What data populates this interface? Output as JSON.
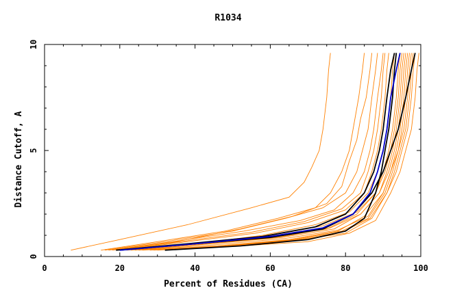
{
  "chart_data": {
    "type": "line",
    "title": "R1034",
    "xlabel": "Percent of Residues (CA)",
    "ylabel": "Distance Cutoff, A",
    "xlim": [
      0,
      100
    ],
    "ylim": [
      0,
      10
    ],
    "x_ticks": [
      "0",
      "20",
      "40",
      "60",
      "80",
      "100"
    ],
    "y_ticks": [
      "0",
      "5",
      "10"
    ],
    "grid": false,
    "legend": "none",
    "colors": {
      "model_lines": "#ff8000",
      "highlight_blue": "#0000cc",
      "highlight_black": "#000000",
      "axes": "#000000"
    },
    "series_groups": [
      {
        "color": "#ff8000",
        "lines": [
          {
            "x": [
              7,
              20,
              38,
              55,
              65,
              69,
              71,
              73,
              74,
              75,
              75.5,
              76
            ],
            "y": [
              0.3,
              0.8,
              1.5,
              2.3,
              2.8,
              3.5,
              4.2,
              5,
              6,
              7.5,
              8.8,
              9.6
            ]
          },
          {
            "x": [
              15,
              30,
              48,
              62,
              72,
              76,
              79,
              81,
              82,
              83.5,
              84.5,
              85
            ],
            "y": [
              0.3,
              0.7,
              1.2,
              1.8,
              2.3,
              3,
              4,
              5,
              6,
              7.5,
              8.8,
              9.6
            ]
          },
          {
            "x": [
              18,
              35,
              52,
              66,
              75,
              79,
              81,
              83,
              84,
              85.5,
              86.5,
              87
            ],
            "y": [
              0.3,
              0.7,
              1.3,
              1.9,
              2.5,
              3.3,
              4.5,
              5.5,
              6.5,
              7.5,
              8.8,
              9.6
            ]
          },
          {
            "x": [
              16,
              32,
              50,
              64,
              74,
              80,
              83,
              84.5,
              86,
              87,
              88,
              88.5
            ],
            "y": [
              0.3,
              0.7,
              1.2,
              1.8,
              2.3,
              3,
              4,
              5,
              6,
              7.5,
              8.8,
              9.6
            ]
          },
          {
            "x": [
              17,
              34,
              53,
              68,
              77,
              82,
              85,
              86.5,
              87.5,
              88.5,
              89.5,
              90
            ],
            "y": [
              0.3,
              0.7,
              1.2,
              1.7,
              2.2,
              3,
              4,
              5,
              6,
              7.5,
              8.8,
              9.6
            ]
          },
          {
            "x": [
              20,
              38,
              56,
              70,
              80,
              85,
              87,
              88.5,
              89.5,
              90.5,
              91,
              91.5
            ],
            "y": [
              0.3,
              0.7,
              1.1,
              1.6,
              2.2,
              3,
              4,
              5,
              6,
              7.5,
              8.8,
              9.6
            ]
          },
          {
            "x": [
              22,
              40,
              58,
              72,
              81,
              86,
              88.5,
              90,
              91,
              92,
              92.5,
              93
            ],
            "y": [
              0.3,
              0.6,
              1.0,
              1.5,
              2.1,
              3,
              4,
              5,
              6,
              7.5,
              8.8,
              9.6
            ]
          },
          {
            "x": [
              20,
              40,
              60,
              75,
              83,
              88,
              90,
              91.5,
              92.5,
              93.5,
              94,
              94.5
            ],
            "y": [
              0.3,
              0.6,
              0.9,
              1.3,
              2.0,
              3,
              4,
              5,
              6,
              7.5,
              8.8,
              9.6
            ]
          },
          {
            "x": [
              24,
              44,
              63,
              77,
              84,
              89,
              91,
              92.5,
              93.5,
              94.5,
              95,
              95.5
            ],
            "y": [
              0.3,
              0.6,
              0.9,
              1.3,
              2.0,
              3,
              4,
              5,
              6,
              7.5,
              8.8,
              9.6
            ]
          },
          {
            "x": [
              26,
              46,
              65,
              78,
              85,
              90,
              92,
              93.5,
              94.5,
              95.5,
              96,
              96.5
            ],
            "y": [
              0.3,
              0.5,
              0.8,
              1.2,
              1.9,
              3,
              4,
              5,
              6,
              7.5,
              8.8,
              9.6
            ]
          },
          {
            "x": [
              28,
              48,
              66,
              79,
              86,
              90.5,
              92.5,
              94,
              95.5,
              96.5,
              97,
              97.5
            ],
            "y": [
              0.3,
              0.5,
              0.8,
              1.2,
              1.8,
              3,
              4,
              5,
              6,
              7.5,
              8.8,
              9.6
            ]
          },
          {
            "x": [
              30,
              50,
              68,
              80,
              87,
              91,
              93.5,
              95,
              96.5,
              97.5,
              98,
              98.5
            ],
            "y": [
              0.3,
              0.5,
              0.8,
              1.1,
              1.8,
              3,
              4,
              5,
              6,
              7.5,
              8.8,
              9.6
            ]
          },
          {
            "x": [
              32,
              52,
              70,
              81,
              88,
              92,
              94.5,
              96,
              97.5,
              98.5,
              99,
              99.5
            ],
            "y": [
              0.3,
              0.5,
              0.7,
              1.1,
              1.7,
              3,
              4,
              5,
              6,
              7.5,
              8.8,
              9.6
            ]
          },
          {
            "x": [
              25,
              45,
              64,
              78,
              86,
              90,
              92,
              94,
              95,
              96,
              96.5,
              97
            ],
            "y": [
              0.3,
              0.55,
              0.85,
              1.25,
              1.9,
              3,
              4,
              5,
              6,
              7.5,
              8.8,
              9.6
            ]
          },
          {
            "x": [
              21,
              41,
              60,
              74,
              83,
              88,
              90.5,
              92,
              93,
              94,
              94.5,
              95
            ],
            "y": [
              0.3,
              0.6,
              1.0,
              1.45,
              2.1,
              3,
              4,
              5,
              6,
              7.5,
              8.8,
              9.6
            ]
          },
          {
            "x": [
              19,
              36,
              55,
              69,
              79,
              84,
              86,
              87.5,
              88.5,
              89.5,
              90,
              90.5
            ],
            "y": [
              0.3,
              0.7,
              1.15,
              1.65,
              2.25,
              3,
              4,
              5,
              6,
              7.5,
              8.8,
              9.6
            ]
          },
          {
            "x": [
              29,
              49,
              67,
              79,
              86.5,
              91,
              93,
              94.5,
              96,
              97,
              97.5,
              98
            ],
            "y": [
              0.3,
              0.5,
              0.8,
              1.15,
              1.8,
              3,
              4,
              5,
              6,
              7.5,
              8.8,
              9.6
            ]
          },
          {
            "x": [
              23,
              43,
              62,
              76,
              84,
              89,
              91.5,
              93,
              94,
              95,
              95.5,
              96
            ],
            "y": [
              0.3,
              0.6,
              0.9,
              1.35,
              2.0,
              3,
              4,
              5,
              6,
              7.5,
              8.8,
              9.6
            ]
          }
        ]
      },
      {
        "color": "#000000",
        "lines": [
          {
            "x": [
              19,
              38,
              58,
              72,
              80,
              85,
              87.5,
              89,
              90,
              91,
              92,
              93
            ],
            "y": [
              0.3,
              0.6,
              0.95,
              1.4,
              2.0,
              3.0,
              4.0,
              5.0,
              6.0,
              7.5,
              8.8,
              9.6
            ]
          },
          {
            "x": [
              32,
              52,
              70,
              80,
              85,
              88,
              89.5,
              90.5,
              91.5,
              92.5,
              93,
              93.5
            ],
            "y": [
              0.3,
              0.5,
              0.8,
              1.2,
              1.8,
              3.0,
              4.0,
              5.0,
              6.0,
              7.5,
              8.8,
              9.6
            ]
          },
          {
            "x": [
              20,
              40,
              60,
              74,
              82,
              87,
              90,
              92,
              94,
              96,
              97.5,
              98.5
            ],
            "y": [
              0.3,
              0.6,
              0.9,
              1.3,
              2.0,
              3.0,
              4.0,
              5.0,
              6.0,
              7.5,
              8.8,
              9.6
            ]
          }
        ]
      },
      {
        "color": "#0000cc",
        "lines": [
          {
            "x": [
              20,
              40,
              60,
              74,
              82,
              86.5,
              88.5,
              90,
              91,
              92,
              93.5,
              94.5
            ],
            "y": [
              0.3,
              0.6,
              0.95,
              1.35,
              2.0,
              3.0,
              4.0,
              5.0,
              6.0,
              7.5,
              8.8,
              9.6
            ]
          }
        ]
      }
    ]
  }
}
